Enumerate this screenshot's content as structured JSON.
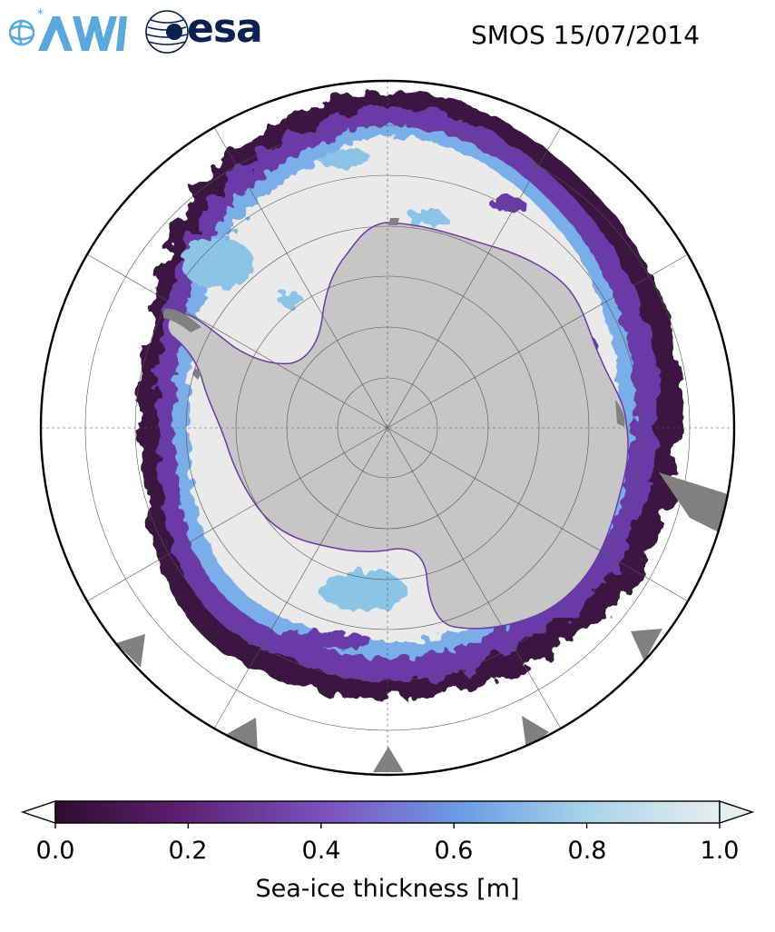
{
  "title": "SMOS 15/07/2014",
  "logos": {
    "awi_text": "AWI",
    "esa_text": "esa"
  },
  "colorbar": {
    "label": "Sea-ice thickness [m]",
    "ticks": [
      "0.0",
      "0.2",
      "0.4",
      "0.6",
      "0.8",
      "1.0"
    ],
    "range": [
      0.0,
      1.0
    ],
    "extend": "both",
    "colors": [
      "#2e0c2e",
      "#5a1e6e",
      "#7c56c4",
      "#6d9fe6",
      "#a9d3e8",
      "#e6eeee"
    ]
  },
  "map": {
    "projection": "south-polar-stereographic",
    "land_color": "#c6c6c6",
    "ice_shelf_color": "#808080",
    "ocean_color": "#ffffff",
    "thick_ice_color": "#eaeaea"
  }
}
